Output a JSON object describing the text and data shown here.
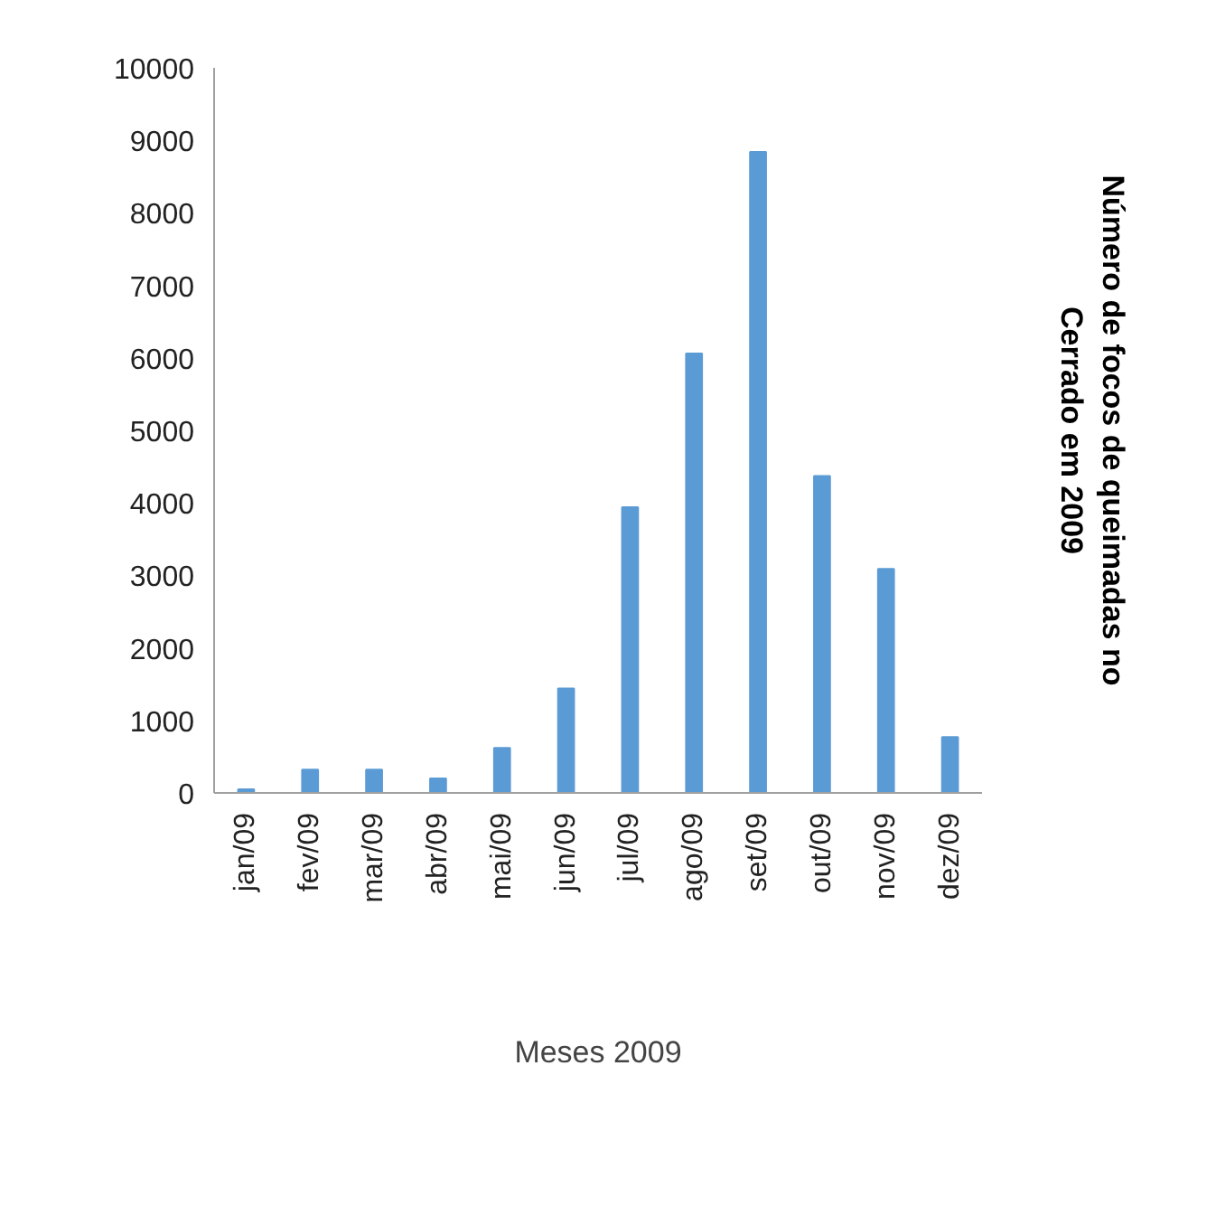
{
  "chart_data": {
    "type": "bar",
    "xlabel": "Meses 2009",
    "ylabel": "Número de focos de queimadas no\nCerrado em 2009",
    "categories": [
      "jan/09",
      "fev/09",
      "mar/09",
      "abr/09",
      "mai/09",
      "jun/09",
      "jul/09",
      "ago/09",
      "set/09",
      "out/09",
      "nov/09",
      "dez/09"
    ],
    "values": [
      50,
      320,
      320,
      200,
      620,
      1440,
      3940,
      6060,
      8840,
      4370,
      3090,
      770
    ],
    "color": "#5b9bd5",
    "ylim": [
      0,
      10000
    ],
    "yticks": [
      0,
      1000,
      2000,
      3000,
      4000,
      5000,
      6000,
      7000,
      8000,
      9000,
      10000
    ],
    "grid": false
  }
}
